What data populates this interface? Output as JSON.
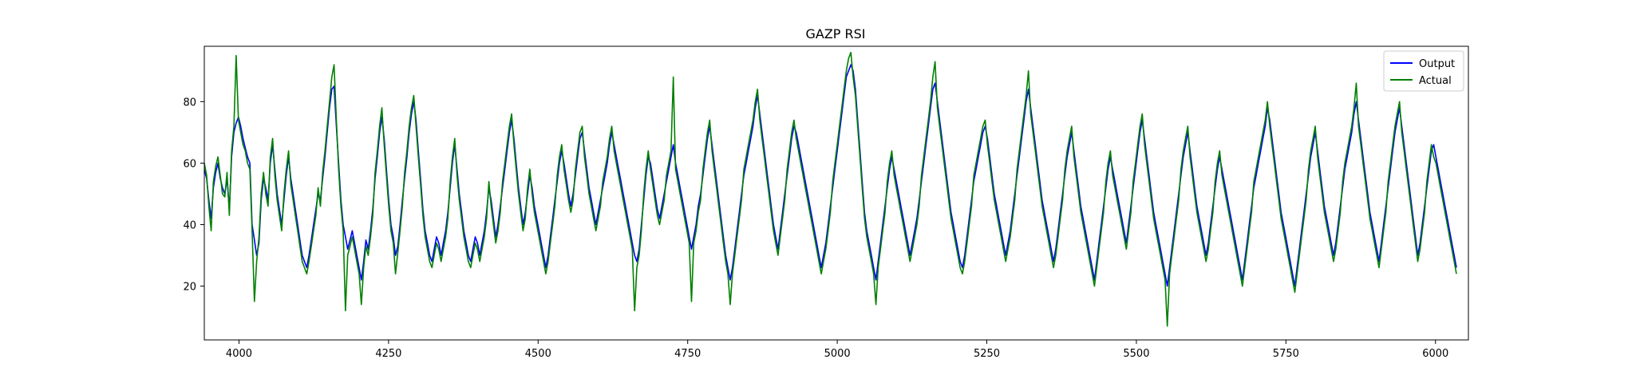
{
  "chart_data": {
    "type": "line",
    "title": "GAZP RSI",
    "xlabel": "",
    "ylabel": "",
    "xlim": [
      3942,
      6055
    ],
    "ylim": [
      2.5,
      98
    ],
    "x_ticks": [
      4000,
      4250,
      4500,
      4750,
      5000,
      5250,
      5500,
      5750,
      6000
    ],
    "y_ticks": [
      20,
      40,
      60,
      80
    ],
    "grid": false,
    "legend_position": "top-right",
    "x_range": [
      3942,
      6035
    ],
    "series": [
      {
        "name": "Output",
        "color": "#0000ff",
        "values": [
          58,
          55,
          48,
          42,
          52,
          57,
          60,
          55,
          52,
          50,
          55,
          45,
          62,
          70,
          73,
          75,
          72,
          68,
          65,
          62,
          60,
          40,
          35,
          30,
          34,
          48,
          55,
          52,
          48,
          60,
          66,
          58,
          50,
          45,
          40,
          48,
          56,
          62,
          55,
          50,
          45,
          40,
          35,
          30,
          28,
          26,
          30,
          35,
          40,
          45,
          50,
          48,
          55,
          62,
          70,
          78,
          84,
          85,
          72,
          60,
          48,
          40,
          36,
          32,
          35,
          38,
          34,
          30,
          26,
          22,
          28,
          35,
          32,
          38,
          45,
          55,
          62,
          70,
          75,
          68,
          58,
          48,
          40,
          36,
          30,
          33,
          40,
          48,
          55,
          62,
          70,
          76,
          80,
          74,
          64,
          55,
          45,
          38,
          34,
          30,
          28,
          32,
          36,
          34,
          30,
          34,
          38,
          44,
          52,
          60,
          66,
          58,
          50,
          44,
          38,
          34,
          30,
          28,
          32,
          36,
          34,
          30,
          34,
          38,
          44,
          52,
          48,
          42,
          36,
          40,
          46,
          52,
          58,
          64,
          70,
          74,
          68,
          60,
          52,
          46,
          40,
          44,
          50,
          56,
          52,
          46,
          42,
          38,
          34,
          30,
          26,
          30,
          36,
          42,
          48,
          54,
          60,
          64,
          60,
          55,
          50,
          46,
          50,
          56,
          62,
          68,
          70,
          64,
          58,
          52,
          48,
          44,
          40,
          44,
          48,
          52,
          56,
          60,
          66,
          70,
          66,
          62,
          58,
          54,
          50,
          46,
          42,
          38,
          34,
          30,
          28,
          32,
          40,
          48,
          56,
          62,
          60,
          55,
          50,
          45,
          42,
          46,
          50,
          54,
          58,
          62,
          66,
          60,
          56,
          52,
          48,
          44,
          40,
          36,
          32,
          36,
          40,
          46,
          50,
          56,
          62,
          68,
          72,
          66,
          60,
          54,
          48,
          42,
          36,
          30,
          26,
          22,
          26,
          32,
          38,
          44,
          50,
          56,
          60,
          64,
          68,
          72,
          78,
          82,
          76,
          70,
          64,
          58,
          52,
          46,
          40,
          36,
          32,
          38,
          44,
          50,
          56,
          62,
          68,
          72,
          70,
          66,
          62,
          58,
          54,
          50,
          46,
          42,
          38,
          34,
          30,
          26,
          30,
          34,
          40,
          46,
          52,
          58,
          64,
          70,
          76,
          82,
          88,
          90,
          92,
          90,
          84,
          74,
          64,
          54,
          44,
          38,
          34,
          30,
          26,
          22,
          28,
          34,
          40,
          46,
          52,
          58,
          62,
          58,
          54,
          50,
          46,
          42,
          38,
          34,
          30,
          34,
          38,
          42,
          48,
          54,
          60,
          66,
          72,
          78,
          84,
          86,
          80,
          74,
          68,
          62,
          56,
          50,
          44,
          40,
          36,
          32,
          28,
          26,
          30,
          36,
          42,
          48,
          54,
          58,
          62,
          66,
          70,
          72,
          68,
          62,
          56,
          50,
          46,
          42,
          38,
          34,
          30,
          34,
          38,
          44,
          50,
          56,
          62,
          68,
          74,
          80,
          84,
          78,
          72,
          66,
          60,
          54,
          48,
          44,
          40,
          36,
          32,
          28,
          32,
          38,
          44,
          50,
          56,
          62,
          66,
          70,
          64,
          58,
          52,
          46,
          42,
          38,
          34,
          30,
          26,
          22,
          28,
          34,
          40,
          46,
          52,
          58,
          62,
          58,
          54,
          50,
          46,
          42,
          38,
          34,
          40,
          46,
          52,
          58,
          64,
          70,
          74,
          68,
          62,
          56,
          50,
          44,
          40,
          36,
          32,
          28,
          24,
          20,
          26,
          32,
          38,
          44,
          50,
          56,
          62,
          66,
          70,
          64,
          58,
          52,
          46,
          42,
          38,
          34,
          30,
          34,
          40,
          46,
          52,
          58,
          62,
          58,
          54,
          50,
          46,
          42,
          38,
          34,
          30,
          26,
          22,
          28,
          34,
          40,
          46,
          52,
          56,
          60,
          64,
          68,
          72,
          78,
          74,
          68,
          62,
          56,
          50,
          44,
          40,
          36,
          32,
          28,
          24,
          20,
          26,
          32,
          38,
          44,
          50,
          56,
          62,
          66,
          70,
          64,
          58,
          52,
          46,
          42,
          38,
          34,
          30,
          34,
          40,
          46,
          52,
          58,
          62,
          66,
          70,
          76,
          80,
          74,
          68,
          62,
          56,
          50,
          44,
          40,
          36,
          32,
          28,
          34,
          40,
          46,
          52,
          58,
          64,
          70,
          74,
          78,
          72,
          66,
          60,
          54,
          48,
          42,
          36,
          30,
          34,
          40,
          46,
          52,
          58,
          64,
          66,
          62,
          58,
          54,
          50,
          46,
          42,
          38,
          34,
          30,
          26
        ]
      },
      {
        "name": "Actual",
        "color": "#008000",
        "values": [
          60,
          56,
          46,
          38,
          54,
          59,
          62,
          56,
          50,
          49,
          57,
          43,
          64,
          72,
          95,
          74,
          70,
          66,
          64,
          60,
          58,
          38,
          15,
          28,
          36,
          50,
          57,
          50,
          46,
          62,
          68,
          56,
          48,
          43,
          38,
          50,
          58,
          64,
          53,
          48,
          43,
          38,
          33,
          28,
          26,
          24,
          28,
          33,
          38,
          43,
          52,
          46,
          57,
          64,
          72,
          80,
          88,
          92,
          74,
          58,
          46,
          38,
          12,
          30,
          33,
          36,
          32,
          28,
          24,
          14,
          26,
          33,
          30,
          36,
          43,
          57,
          64,
          72,
          78,
          66,
          56,
          46,
          38,
          34,
          24,
          31,
          38,
          46,
          57,
          64,
          72,
          78,
          82,
          72,
          62,
          53,
          43,
          36,
          32,
          28,
          26,
          30,
          34,
          32,
          28,
          32,
          36,
          42,
          54,
          62,
          68,
          56,
          48,
          42,
          36,
          32,
          28,
          26,
          30,
          34,
          32,
          28,
          32,
          36,
          42,
          54,
          46,
          40,
          34,
          38,
          44,
          54,
          60,
          66,
          72,
          76,
          66,
          58,
          50,
          44,
          38,
          42,
          52,
          58,
          50,
          44,
          40,
          36,
          32,
          28,
          24,
          28,
          34,
          40,
          46,
          56,
          62,
          66,
          58,
          53,
          48,
          44,
          48,
          58,
          64,
          70,
          72,
          62,
          56,
          50,
          46,
          42,
          38,
          42,
          46,
          54,
          58,
          62,
          68,
          72,
          64,
          60,
          56,
          52,
          48,
          44,
          40,
          36,
          32,
          12,
          26,
          30,
          38,
          50,
          58,
          64,
          58,
          53,
          48,
          43,
          40,
          44,
          48,
          56,
          60,
          64,
          88,
          58,
          54,
          50,
          46,
          42,
          38,
          34,
          15,
          34,
          38,
          44,
          48,
          58,
          64,
          70,
          74,
          64,
          58,
          52,
          46,
          40,
          34,
          28,
          24,
          14,
          24,
          30,
          36,
          42,
          48,
          58,
          62,
          66,
          70,
          74,
          80,
          84,
          74,
          68,
          62,
          56,
          50,
          44,
          38,
          34,
          30,
          36,
          42,
          48,
          58,
          64,
          70,
          74,
          68,
          64,
          60,
          56,
          52,
          48,
          44,
          40,
          36,
          32,
          28,
          24,
          28,
          32,
          38,
          44,
          54,
          60,
          66,
          72,
          78,
          84,
          90,
          94,
          96,
          88,
          82,
          72,
          62,
          52,
          42,
          36,
          32,
          28,
          24,
          14,
          26,
          32,
          38,
          44,
          54,
          60,
          64,
          56,
          52,
          48,
          44,
          40,
          36,
          32,
          28,
          32,
          36,
          40,
          46,
          56,
          62,
          68,
          74,
          80,
          88,
          93,
          78,
          72,
          66,
          60,
          54,
          48,
          42,
          38,
          34,
          30,
          26,
          24,
          28,
          34,
          40,
          46,
          56,
          60,
          64,
          68,
          72,
          74,
          66,
          60,
          54,
          48,
          44,
          40,
          36,
          32,
          28,
          32,
          36,
          42,
          48,
          58,
          64,
          70,
          76,
          82,
          90,
          76,
          70,
          64,
          58,
          52,
          46,
          42,
          38,
          34,
          30,
          26,
          30,
          36,
          42,
          48,
          58,
          64,
          68,
          72,
          62,
          56,
          50,
          44,
          40,
          36,
          32,
          28,
          24,
          20,
          26,
          32,
          38,
          44,
          54,
          60,
          64,
          56,
          52,
          48,
          44,
          40,
          36,
          32,
          38,
          44,
          54,
          60,
          66,
          72,
          76,
          66,
          60,
          54,
          48,
          42,
          38,
          34,
          30,
          26,
          22,
          7,
          24,
          30,
          36,
          42,
          48,
          58,
          64,
          68,
          72,
          62,
          56,
          50,
          44,
          40,
          36,
          32,
          28,
          32,
          38,
          44,
          54,
          60,
          64,
          56,
          52,
          48,
          44,
          40,
          36,
          32,
          28,
          24,
          20,
          26,
          32,
          38,
          44,
          54,
          58,
          62,
          66,
          70,
          74,
          80,
          72,
          66,
          60,
          54,
          48,
          42,
          38,
          34,
          30,
          26,
          22,
          18,
          24,
          30,
          36,
          42,
          48,
          58,
          64,
          68,
          72,
          62,
          56,
          50,
          44,
          40,
          36,
          32,
          28,
          32,
          38,
          44,
          54,
          60,
          64,
          68,
          72,
          78,
          86,
          72,
          66,
          60,
          54,
          48,
          42,
          38,
          34,
          30,
          26,
          32,
          38,
          44,
          54,
          60,
          66,
          72,
          76,
          80,
          70,
          64,
          58,
          52,
          46,
          40,
          34,
          28,
          32,
          38,
          44,
          54,
          60,
          66,
          62,
          60,
          56,
          52,
          48,
          44,
          40,
          36,
          32,
          28,
          24
        ]
      }
    ]
  }
}
